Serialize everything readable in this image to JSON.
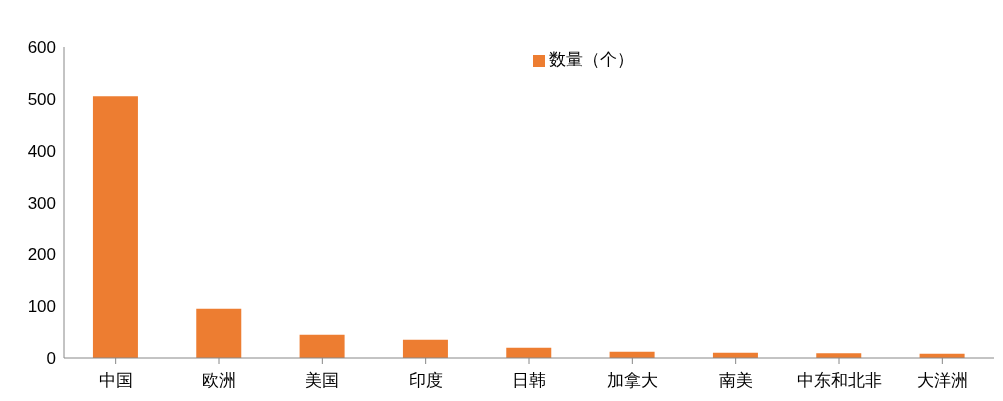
{
  "chart_data": {
    "type": "bar",
    "categories": [
      "中国",
      "欧洲",
      "美国",
      "印度",
      "日韩",
      "加拿大",
      "南美",
      "中东和北非",
      "大洋洲"
    ],
    "series": [
      {
        "name": "数量（个）",
        "color": "#ed7d31",
        "values": [
          505,
          95,
          45,
          35,
          20,
          12,
          10,
          9,
          8
        ]
      }
    ],
    "ylim": [
      0,
      600
    ],
    "yticks": [
      0,
      100,
      200,
      300,
      400,
      500,
      600
    ],
    "grid": false,
    "legend": "top"
  }
}
